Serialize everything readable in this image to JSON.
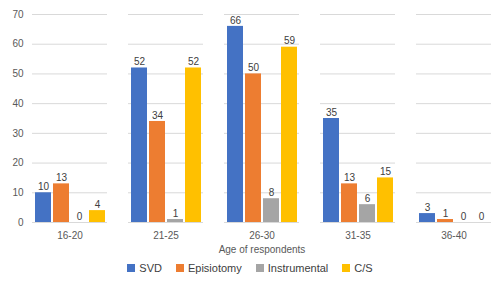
{
  "chart_data": {
    "type": "bar",
    "x_label": "Age of respondents",
    "categories": [
      "16-20",
      "21-25",
      "26-30",
      "31-35",
      "36-40"
    ],
    "series": [
      {
        "name": "SVD",
        "color": "#4472c4",
        "values": [
          10,
          52,
          66,
          35,
          3
        ]
      },
      {
        "name": "Episiotomy",
        "color": "#ed7d31",
        "values": [
          13,
          34,
          50,
          13,
          1
        ]
      },
      {
        "name": "Instrumental",
        "color": "#a5a5a5",
        "values": [
          0,
          1,
          8,
          6,
          0
        ]
      },
      {
        "name": "C/S",
        "color": "#ffc000",
        "values": [
          4,
          52,
          59,
          15,
          0
        ]
      }
    ],
    "ylim": [
      0,
      70
    ],
    "yticks": [
      0,
      10,
      20,
      30,
      40,
      50,
      60,
      70
    ],
    "grid": true,
    "data_labels": true,
    "legend": "bottom"
  }
}
